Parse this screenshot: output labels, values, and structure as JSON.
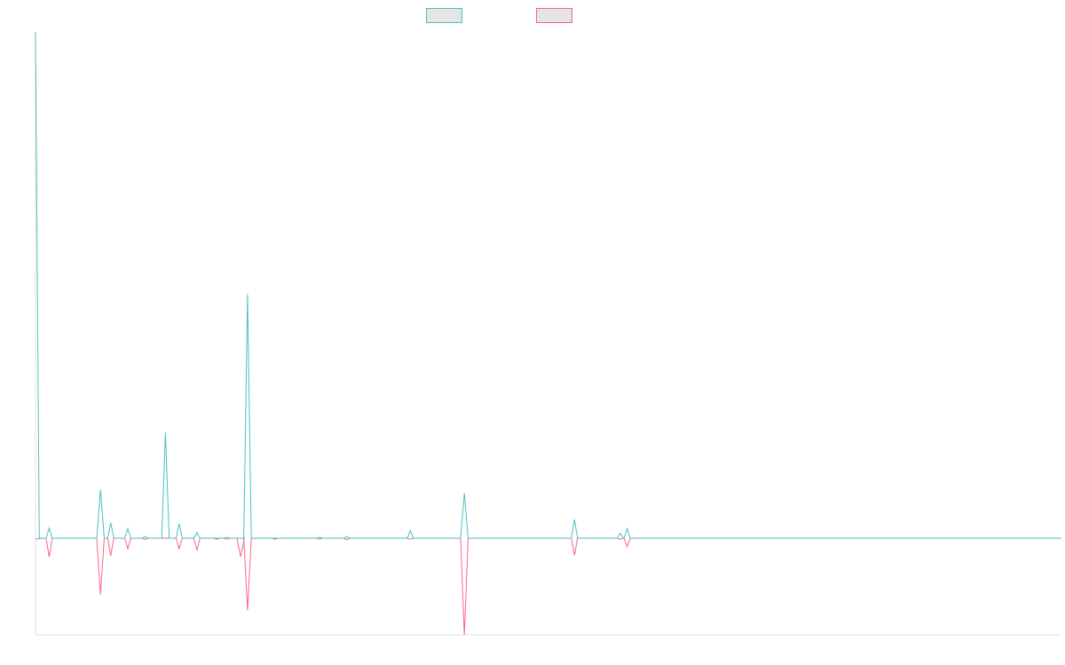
{
  "chart_data": {
    "type": "line",
    "title": "",
    "xlabel": "",
    "ylabel": "",
    "grid": false,
    "legend_position": "top-center",
    "x_count": 150,
    "ylim": [
      -200,
      1050
    ],
    "colors": {
      "series_a": "#4bc0c0",
      "series_b": "#ff6384",
      "axis": "#e0e0e0",
      "legend_fill": "#e5e5e5"
    },
    "series": [
      {
        "key": "a",
        "points": [
          [
            0,
            1000
          ],
          [
            1,
            0
          ],
          [
            2,
            20
          ],
          [
            3,
            0
          ],
          [
            9,
            0
          ],
          [
            10,
            100
          ],
          [
            11,
            0
          ],
          [
            12,
            32
          ],
          [
            13,
            0
          ],
          [
            14,
            0
          ],
          [
            15,
            20
          ],
          [
            16,
            0
          ],
          [
            17,
            0
          ],
          [
            18,
            4
          ],
          [
            19,
            0
          ],
          [
            20,
            0
          ],
          [
            21,
            0
          ],
          [
            22,
            210
          ],
          [
            23,
            0
          ],
          [
            24,
            0
          ],
          [
            25,
            30
          ],
          [
            26,
            0
          ],
          [
            27,
            0
          ],
          [
            28,
            12
          ],
          [
            29,
            8
          ],
          [
            30,
            0
          ],
          [
            31,
            0
          ],
          [
            32,
            0
          ],
          [
            33,
            0
          ],
          [
            34,
            0
          ],
          [
            35,
            0
          ],
          [
            36,
            0
          ],
          [
            37,
            0
          ],
          [
            38,
            0
          ],
          [
            39,
            0
          ],
          [
            40,
            0
          ],
          [
            41,
            0
          ],
          [
            42,
            0
          ],
          [
            43,
            0
          ],
          [
            31,
            500
          ],
          [
            31,
            0
          ],
          [
            40,
            0
          ],
          [
            60,
            0
          ],
          [
            61,
            14
          ],
          [
            62,
            0
          ],
          [
            63,
            0
          ],
          [
            64,
            0
          ],
          [
            65,
            0
          ],
          [
            66,
            0
          ],
          [
            67,
            0
          ],
          [
            68,
            0
          ],
          [
            69,
            0
          ],
          [
            70,
            0
          ],
          [
            71,
            0
          ],
          [
            72,
            0
          ],
          [
            73,
            0
          ],
          [
            74,
            0
          ],
          [
            75,
            0
          ],
          [
            76,
            0
          ],
          [
            77,
            0
          ],
          [
            78,
            0
          ],
          [
            79,
            0
          ],
          [
            80,
            0
          ],
          [
            81,
            0
          ],
          [
            82,
            0
          ],
          [
            83,
            0
          ],
          [
            84,
            0
          ],
          [
            85,
            0
          ]
        ]
      }
    ],
    "series_a_x": [
      0,
      0.5,
      1,
      1.5,
      2,
      2.5,
      3,
      9,
      9.5,
      10,
      10.5,
      11,
      11.5,
      12,
      12.5,
      13,
      13.5,
      14,
      14.5,
      15,
      15.5,
      16,
      16.5,
      17,
      17.5,
      18,
      18.5,
      19,
      19.5,
      20,
      20.5,
      21,
      21.5,
      22,
      22.5,
      23,
      23.5,
      24,
      24.5,
      25,
      25.5,
      26,
      26.5,
      27,
      27.5,
      28,
      28.5,
      29,
      29.5,
      30,
      30.5,
      31,
      31.5,
      32,
      32.5,
      33,
      34,
      35,
      36,
      37,
      38,
      39,
      40,
      41,
      42,
      43,
      44,
      45,
      46,
      47,
      48,
      49,
      50,
      51,
      52,
      53,
      54,
      55,
      56,
      57,
      58,
      59,
      60,
      61,
      62,
      63,
      64,
      65,
      66,
      67,
      68,
      69,
      70,
      71,
      72,
      73,
      74,
      75,
      76,
      77,
      78,
      79,
      80,
      81,
      82,
      83,
      84,
      85,
      86,
      87,
      88,
      89,
      90,
      91,
      92,
      93,
      94,
      95,
      96,
      97,
      98,
      99,
      100,
      101,
      102,
      103,
      104,
      105,
      106,
      107,
      108,
      109,
      110,
      111,
      112,
      113,
      114,
      115,
      116,
      117,
      118,
      119,
      120,
      121,
      122,
      123,
      124,
      125,
      126,
      127,
      128,
      129,
      130,
      131,
      132,
      133,
      134,
      135,
      136,
      137,
      138,
      139,
      140,
      141,
      142,
      143,
      144,
      145,
      146,
      147,
      148,
      149,
      150
    ],
    "peaks_a": [
      {
        "x": 0,
        "y": 1000
      },
      {
        "x": 2,
        "y": 20
      },
      {
        "x": 9.5,
        "y": 96
      },
      {
        "x": 11,
        "y": 31
      },
      {
        "x": 13.5,
        "y": 19
      },
      {
        "x": 16,
        "y": 3
      },
      {
        "x": 19,
        "y": 209
      },
      {
        "x": 21,
        "y": 29
      },
      {
        "x": 23.3,
        "y": 11
      },
      {
        "x": 23.8,
        "y": 8
      },
      {
        "x": 31,
        "y": 482
      },
      {
        "x": 43.8,
        "y": 0
      },
      {
        "x": 54.8,
        "y": 15
      },
      {
        "x": 62.7,
        "y": 89
      },
      {
        "x": 78.8,
        "y": 37
      },
      {
        "x": 85.5,
        "y": 10
      },
      {
        "x": 86.5,
        "y": 19
      }
    ],
    "peaks_b": [
      {
        "x": 2,
        "y": -37
      },
      {
        "x": 9.5,
        "y": -112
      },
      {
        "x": 11,
        "y": -35
      },
      {
        "x": 13.5,
        "y": -21
      },
      {
        "x": 21,
        "y": -21
      },
      {
        "x": 24,
        "y": -24
      },
      {
        "x": 30,
        "y": -37
      },
      {
        "x": 31,
        "y": -143
      },
      {
        "x": 54.8,
        "y": -2
      },
      {
        "x": 62.7,
        "y": -192
      },
      {
        "x": 78.8,
        "y": -34
      },
      {
        "x": 86.5,
        "y": -17
      }
    ],
    "diamonds": [
      {
        "x": 2,
        "h_up": 20,
        "h_down": -37
      },
      {
        "x": 11,
        "h_up": 31,
        "h_down": -35
      },
      {
        "x": 13.5,
        "h_up": 19,
        "h_down": -21
      },
      {
        "x": 16,
        "h_up": 3,
        "h_down": -2
      },
      {
        "x": 21,
        "h_up": 29,
        "h_down": -21
      },
      {
        "x": 23.6,
        "h_up": 11,
        "h_down": -24
      },
      {
        "x": 26.5,
        "h_up": 0,
        "h_down": -2
      },
      {
        "x": 28,
        "h_up": 2,
        "h_down": -2
      },
      {
        "x": 35,
        "h_up": 0,
        "h_down": -2
      },
      {
        "x": 41.5,
        "h_up": 2,
        "h_down": -2
      },
      {
        "x": 45.5,
        "h_up": 3,
        "h_down": -3
      },
      {
        "x": 54.8,
        "h_up": 15,
        "h_down": -2
      },
      {
        "x": 78.8,
        "h_up": 37,
        "h_down": -34
      },
      {
        "x": 85.5,
        "h_up": 10,
        "h_down": -2
      },
      {
        "x": 86.5,
        "h_up": 19,
        "h_down": -17
      }
    ],
    "spikes_a": [
      {
        "x": 0,
        "y": 1000
      },
      {
        "x": 9.5,
        "y": 96
      },
      {
        "x": 19,
        "y": 209
      },
      {
        "x": 31,
        "y": 482
      },
      {
        "x": 62.7,
        "y": 89
      }
    ],
    "spikes_b": [
      {
        "x": 9.5,
        "y": -112
      },
      {
        "x": 30,
        "y": -37
      },
      {
        "x": 31,
        "y": -143
      },
      {
        "x": 62.7,
        "y": -192
      }
    ],
    "legend": [
      {
        "series": "a",
        "label": ""
      },
      {
        "series": "b",
        "label": ""
      }
    ]
  }
}
